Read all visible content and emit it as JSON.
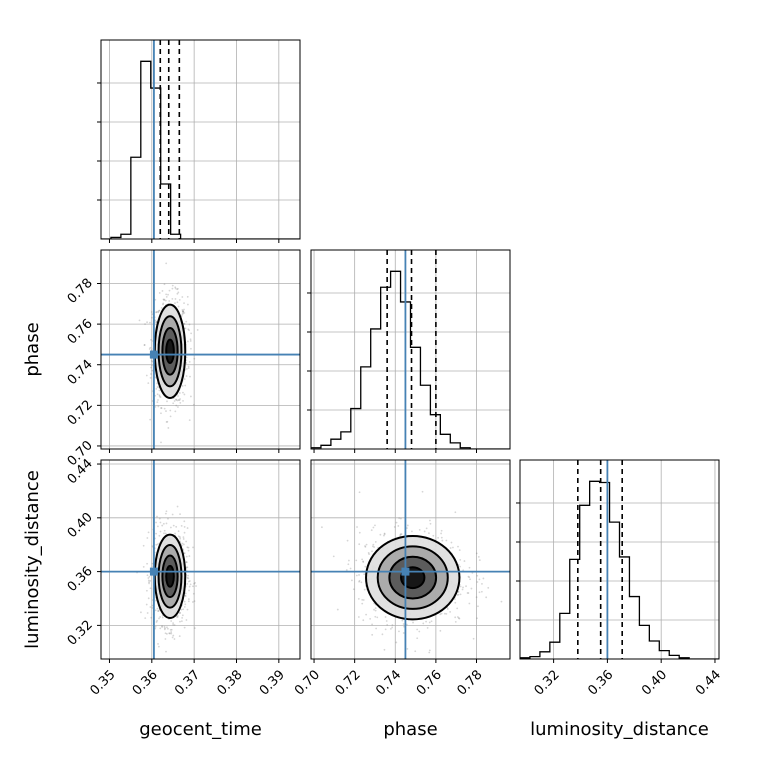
{
  "chart_data": {
    "type": "corner",
    "parameters": [
      {
        "name": "geocent_time",
        "label": "geocent_time",
        "range": [
          0.348,
          0.395
        ],
        "ticks": [
          0.35,
          0.36,
          0.37,
          0.38,
          0.39
        ],
        "tick_labels": [
          "0.35",
          "0.36",
          "0.37",
          "0.38",
          "0.39"
        ],
        "truth": 0.3605,
        "quantiles": [
          0.362,
          0.364,
          0.3665
        ]
      },
      {
        "name": "phase",
        "label": "phase",
        "range": [
          0.6985,
          0.7965
        ],
        "ticks": [
          0.7,
          0.72,
          0.74,
          0.76,
          0.78
        ],
        "tick_labels": [
          "0.70",
          "0.72",
          "0.74",
          "0.76",
          "0.78"
        ],
        "truth": 0.745,
        "quantiles": [
          0.736,
          0.748,
          0.76
        ]
      },
      {
        "name": "luminosity_distance",
        "label": "luminosity_distance",
        "range": [
          0.295,
          0.443
        ],
        "ticks": [
          0.32,
          0.36,
          0.4,
          0.44
        ],
        "tick_labels": [
          "0.32",
          "0.36",
          "0.40",
          "0.44"
        ],
        "truth": 0.36,
        "quantiles": [
          0.338,
          0.355,
          0.371
        ]
      }
    ],
    "histograms": [
      {
        "parameter": "geocent_time",
        "counts": [
          0,
          1,
          3,
          52,
          113,
          96,
          35,
          3,
          0,
          0,
          0,
          0,
          0,
          0,
          0,
          0,
          0,
          0,
          0,
          0
        ]
      },
      {
        "parameter": "phase",
        "counts": [
          1,
          3,
          8,
          14,
          33,
          67,
          98,
          132,
          145,
          120,
          83,
          52,
          28,
          12,
          5,
          1,
          0,
          0,
          0,
          0
        ]
      },
      {
        "parameter": "luminosity_distance",
        "counts": [
          1,
          2,
          6,
          14,
          38,
          83,
          128,
          148,
          147,
          114,
          85,
          52,
          28,
          15,
          7,
          3,
          1,
          0,
          0,
          0
        ]
      }
    ],
    "contour_panels": [
      {
        "x": "geocent_time",
        "y": "phase",
        "center": [
          0.3643,
          0.7466
        ],
        "sigma": [
          0.0018,
          0.0115
        ],
        "levels": [
          0.5,
          1.0,
          1.5,
          2.0
        ]
      },
      {
        "x": "geocent_time",
        "y": "luminosity_distance",
        "center": [
          0.3643,
          0.3565
        ],
        "sigma": [
          0.0018,
          0.0155
        ],
        "levels": [
          0.5,
          1.0,
          1.5,
          2.0
        ]
      },
      {
        "x": "phase",
        "y": "luminosity_distance",
        "center": [
          0.7486,
          0.3555
        ],
        "sigma": [
          0.0115,
          0.0155
        ],
        "levels": [
          0.5,
          1.0,
          1.5,
          2.0
        ]
      }
    ],
    "truth_color": "#4682b4",
    "hist_color": "#000000",
    "grid": true
  }
}
